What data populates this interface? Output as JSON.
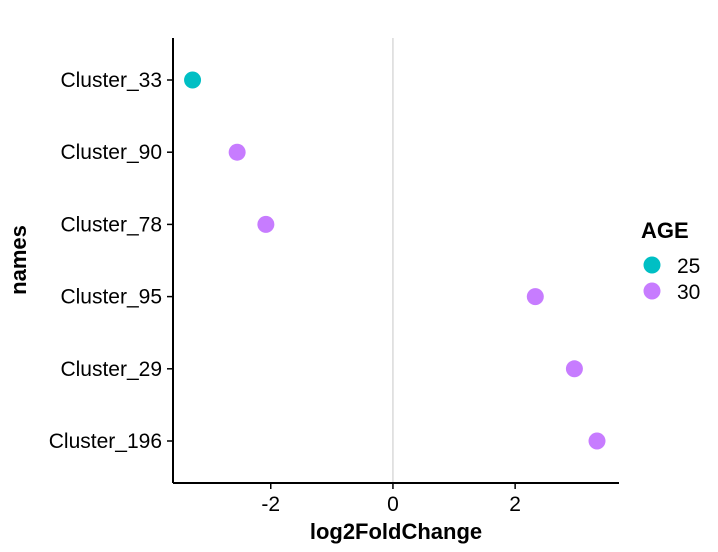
{
  "chart_data": {
    "type": "scatter",
    "xlabel": "log2FoldChange",
    "ylabel": "names",
    "xlim": [
      -3.6,
      3.7
    ],
    "x_ticks": [
      -2,
      0,
      2
    ],
    "x_tick_labels": [
      "-2",
      "0",
      "2"
    ],
    "categories": [
      "Cluster_33",
      "Cluster_90",
      "Cluster_78",
      "Cluster_95",
      "Cluster_29",
      "Cluster_196"
    ],
    "reference_line_x": 0,
    "grid": false,
    "points": [
      {
        "name": "Cluster_33",
        "x": -3.28,
        "group": "25"
      },
      {
        "name": "Cluster_90",
        "x": -2.55,
        "group": "30"
      },
      {
        "name": "Cluster_78",
        "x": -2.08,
        "group": "30"
      },
      {
        "name": "Cluster_95",
        "x": 2.33,
        "group": "30"
      },
      {
        "name": "Cluster_29",
        "x": 2.97,
        "group": "30"
      },
      {
        "name": "Cluster_196",
        "x": 3.34,
        "group": "30"
      }
    ],
    "legend": {
      "title": "AGE",
      "placement": "right",
      "entries": [
        {
          "label": "25",
          "color": "#00bfc4"
        },
        {
          "label": "30",
          "color": "#c77cff"
        }
      ]
    },
    "colors": {
      "25": "#00bfc4",
      "30": "#c77cff",
      "axis": "#000000",
      "reference_line": "#c8c8c8"
    }
  }
}
